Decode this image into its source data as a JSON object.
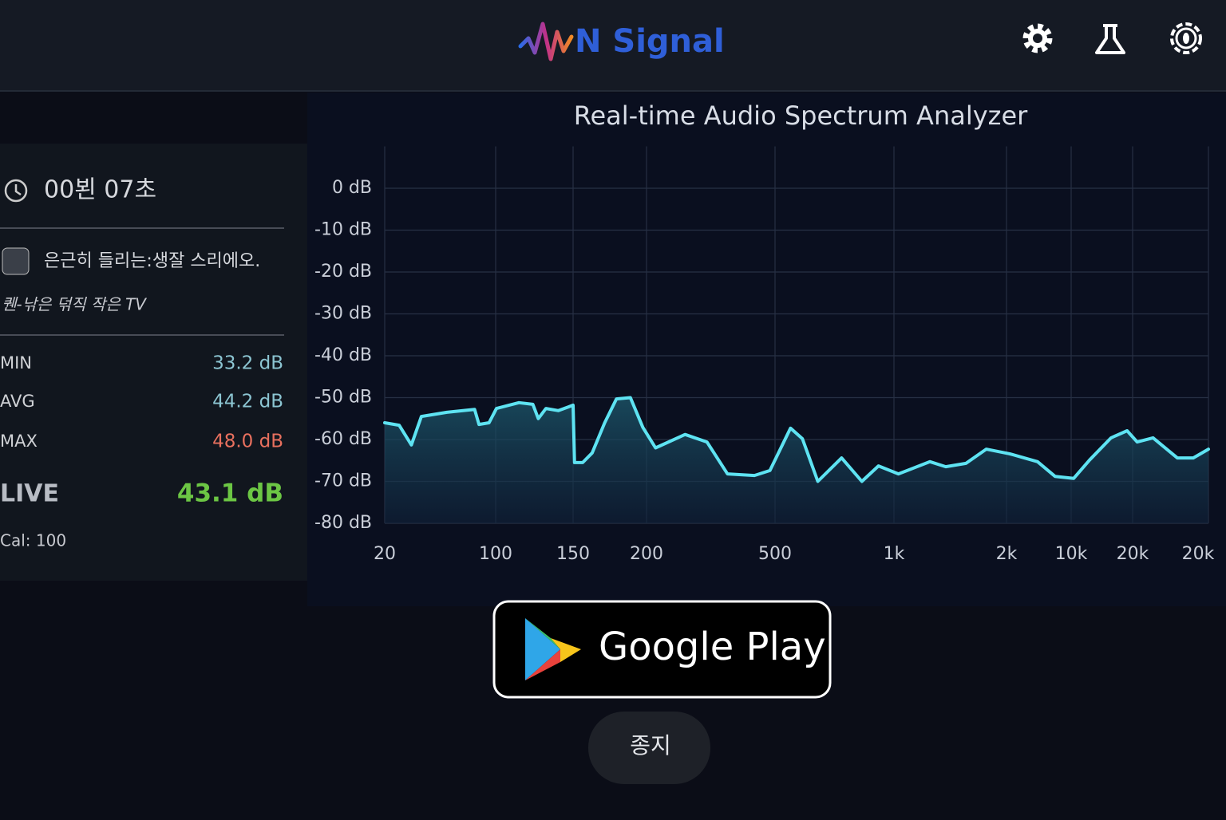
{
  "header": {
    "logo": "N Signal"
  },
  "session": {
    "timer": "00뵌 07초",
    "source": "은근히 들리는:생잘 스리에오.",
    "device": "퀜-낚은 덖직  작은 TV"
  },
  "stats": {
    "rows": [
      [
        "MIN",
        "33.2 dB"
      ],
      [
        "AVG",
        "44.2 dB"
      ],
      [
        "MAX",
        "48.0 dB"
      ]
    ],
    "live": [
      "LIVE",
      "43.1 dB"
    ],
    "cal": "Cal: 100"
  },
  "chart_data": {
    "type": "line",
    "title": "Real-time Audio Spectrum Analyzer",
    "color": "#5ee3f2",
    "x": [
      0,
      0.13,
      0.24,
      0.33,
      0.56,
      0.81,
      0.85,
      0.94,
      1.01,
      1.3,
      1.48,
      1.55,
      1.65,
      1.81,
      1.94,
      2.0,
      2.02,
      2.13,
      2.26,
      2.43,
      2.59,
      2.78,
      2.95,
      3.07,
      3.3,
      3.47,
      3.63,
      3.84,
      3.96,
      4.13,
      4.23,
      4.36,
      4.56,
      4.73,
      4.87,
      5.04,
      5.32,
      5.46,
      5.64,
      5.82,
      6.05,
      6.48,
      6.75,
      7.04,
      7.3,
      7.65,
      7.91,
      8.06,
      8.27,
      8.59,
      8.8,
      9.0
    ],
    "values": [
      -56,
      -56.6,
      -61.3,
      -54.5,
      -53.5,
      -52.8,
      -56.4,
      -56,
      -52.6,
      -51.2,
      -51.6,
      -55,
      -52.6,
      -53.1,
      -52.2,
      -51.8,
      -65.5,
      -65.5,
      -63.2,
      -56,
      -50.3,
      -50,
      -57.1,
      -62,
      -58.8,
      -60.6,
      -68.2,
      -68.6,
      -67.4,
      -57.3,
      -59.8,
      -70,
      -64.4,
      -70,
      -66.3,
      -68.2,
      -65.3,
      -66.5,
      -65.7,
      -62.3,
      -63.4,
      -65.3,
      -68.8,
      -69.3,
      -64.9,
      -59.6,
      -57.9,
      -60.6,
      -59.6,
      -64.4,
      -64.4,
      -62.3
    ],
    "xlim": [
      0,
      9
    ],
    "xticks": [
      {
        "value": 0,
        "label": "20"
      },
      {
        "value": 1,
        "label": "100"
      },
      {
        "value": 2,
        "label": "150"
      },
      {
        "value": 3,
        "label": "200"
      },
      {
        "value": 4,
        "label": "500"
      },
      {
        "value": 5,
        "label": "1k"
      },
      {
        "value": 6,
        "label": "2k"
      },
      {
        "value": 7,
        "label": "10k"
      },
      {
        "value": 8,
        "label": "20k"
      },
      {
        "value": 9,
        "label": "20k"
      }
    ],
    "ylim": [
      -80,
      10
    ],
    "yticks": [
      {
        "value": 0,
        "label": "0 dB"
      },
      {
        "value": -10,
        "label": "-10 dB"
      },
      {
        "value": -20,
        "label": "-20 dB"
      },
      {
        "value": -30,
        "label": "-30 dB"
      },
      {
        "value": -40,
        "label": "-40 dB"
      },
      {
        "value": -50,
        "label": "-50 dB"
      },
      {
        "value": -60,
        "label": "-60 dB"
      },
      {
        "value": -70,
        "label": "-70 dB"
      },
      {
        "value": -80,
        "label": "-80 dB"
      }
    ],
    "grid": true
  },
  "buttons": {
    "store": "Google Play",
    "stop": "종지"
  }
}
